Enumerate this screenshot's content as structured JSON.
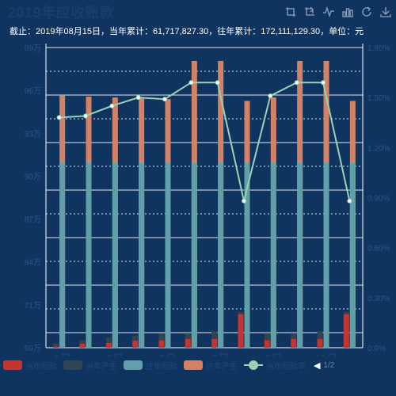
{
  "title": "2019年应收账款",
  "subtitle": "截止：2019年08月15日，当年累计：61,717,827.30，往年累计：172,111,129.30，单位：元",
  "toolbox": [
    {
      "name": "zoom-icon"
    },
    {
      "name": "zoom-reset-icon"
    },
    {
      "name": "line-chart-icon"
    },
    {
      "name": "bar-chart-icon"
    },
    {
      "name": "restore-icon"
    },
    {
      "name": "save-image-icon"
    }
  ],
  "legend": {
    "items": [
      {
        "label": "当年回款",
        "color": "#c23531",
        "kind": "bar"
      },
      {
        "label": "当年产生",
        "color": "#2f4554",
        "kind": "bar"
      },
      {
        "label": "往年回款",
        "color": "#61a0a8",
        "kind": "bar"
      },
      {
        "label": "往年产生",
        "color": "#d48265",
        "kind": "bar"
      },
      {
        "label": "当年回款率",
        "color": "#98d3b4",
        "kind": "line"
      }
    ],
    "page": "1/2"
  },
  "chart_data": {
    "type": "bar",
    "categories": [
      "1月",
      "2月",
      "3月",
      "4月",
      "5月",
      "6月",
      "7月",
      "8月",
      "9月",
      "10月",
      "11月",
      "12月"
    ],
    "yaxis_left": {
      "ticks": [
        "69万",
        "71万",
        "84万",
        "87万",
        "90万",
        "93万",
        "96万",
        "99万"
      ]
    },
    "yaxis_right": {
      "min": 0,
      "max": 1.8,
      "ticks": [
        "0.0%",
        "0.30%",
        "0.60%",
        "0.90%",
        "1.20%",
        "1.50%",
        "1.80%"
      ]
    },
    "series": [
      {
        "name": "当年回款",
        "color": "#c23531",
        "values": [
          2,
          9,
          11,
          16,
          17,
          20,
          20,
          77,
          17,
          20,
          20,
          77
        ]
      },
      {
        "name": "当年产生",
        "color": "#2f4554",
        "values": [
          10,
          17,
          24,
          27,
          33,
          34,
          38,
          82,
          34,
          34,
          38,
          82
        ]
      },
      {
        "name": "往年回款",
        "color": "#61a0a8",
        "values": [
          425,
          425,
          425,
          425,
          425,
          425,
          425,
          425,
          425,
          425,
          425,
          425
        ]
      },
      {
        "name": "往年产生",
        "color": "#d48265",
        "values": [
          580,
          578,
          576,
          574,
          572,
          660,
          660,
          568,
          576,
          660,
          660,
          568
        ]
      },
      {
        "name": "当年回款率",
        "color": "#98d3b4",
        "type": "line",
        "values": [
          1.38,
          1.39,
          1.45,
          1.5,
          1.49,
          1.59,
          1.59,
          0.88,
          1.51,
          1.59,
          1.59,
          0.88
        ]
      }
    ],
    "grid": true,
    "legend_position": "bottom"
  }
}
